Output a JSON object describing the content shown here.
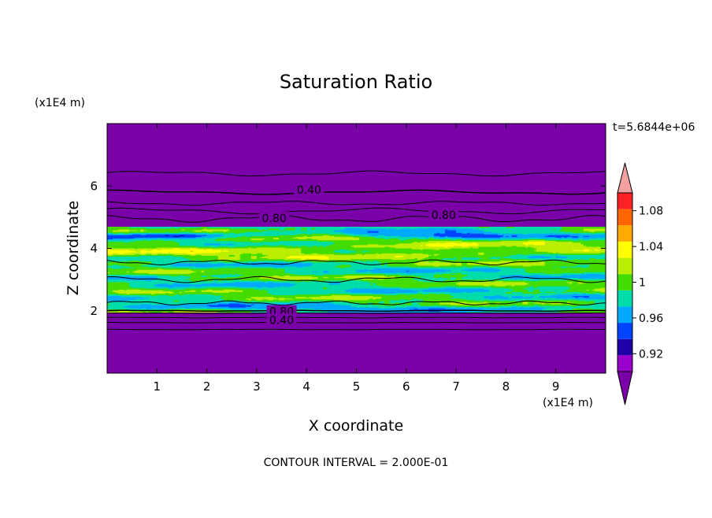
{
  "chart_data": {
    "type": "heatmap",
    "title": "Saturation Ratio",
    "xlabel": "X coordinate",
    "ylabel": "Z coordinate",
    "x_units": "(x1E4 m)",
    "y_units": "(x1E4 m)",
    "time_label": "t=5.6844e+06",
    "footer": "CONTOUR INTERVAL = 2.000E-01",
    "xlim": [
      0,
      10
    ],
    "ylim": [
      0,
      8
    ],
    "x_ticks": [
      1,
      2,
      3,
      4,
      5,
      6,
      7,
      8,
      9
    ],
    "y_ticks": [
      2,
      4,
      6
    ],
    "colorbar": {
      "levels": [
        0.9,
        0.92,
        0.94,
        0.96,
        0.98,
        1.0,
        1.02,
        1.04,
        1.06,
        1.08,
        1.1
      ],
      "colors": [
        "#9900cc",
        "#1f00a8",
        "#0044ff",
        "#00aaff",
        "#00ddaa",
        "#44dd00",
        "#bbee00",
        "#ffff00",
        "#ffaa00",
        "#ff6600",
        "#ff2222"
      ],
      "under_color": "#7a00a8",
      "over_color": "#f2a0a0",
      "tick_values": [
        0.92,
        0.96,
        1.0,
        1.04,
        1.08
      ],
      "tick_labels": [
        "0.92",
        "0.96",
        "1",
        "1.04",
        "1.08"
      ]
    },
    "contour_labels": [
      {
        "text": "0.40",
        "x": 4.05,
        "z": 5.85
      },
      {
        "text": "0.80",
        "x": 3.35,
        "z": 4.95
      },
      {
        "text": "0.80",
        "x": 6.75,
        "z": 5.05
      },
      {
        "text": "0.80",
        "x": 3.5,
        "z": 1.95
      },
      {
        "text": "0.40",
        "x": 3.5,
        "z": 1.68
      }
    ],
    "layers": {
      "background_color": "#7a00a8",
      "moist_layer_bottom": 2.0,
      "moist_layer_top": 4.55
    }
  }
}
